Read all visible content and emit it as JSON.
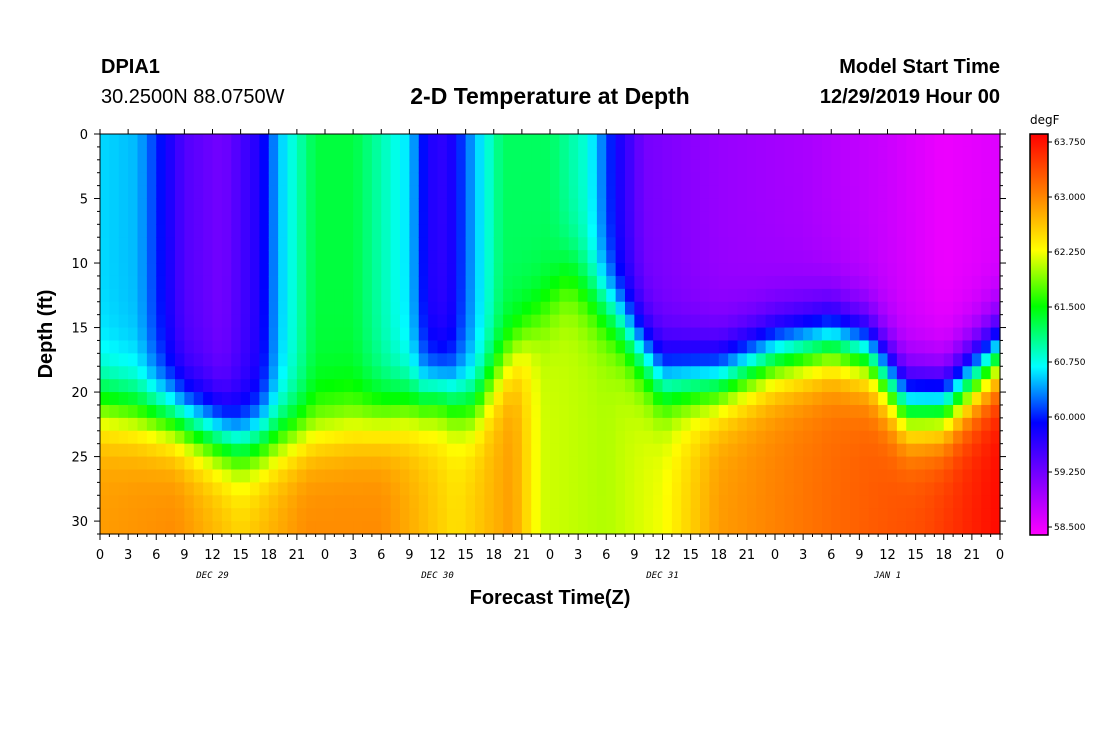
{
  "header": {
    "station_id": "DPIA1",
    "station_coords": "30.2500N 88.0750W",
    "title": "2-D Temperature at Depth",
    "start_label": "Model Start Time",
    "start_time": "12/29/2019 Hour 00"
  },
  "chart_data": {
    "type": "heatmap",
    "title": "2-D Temperature at Depth",
    "xlabel": "Forecast Time(Z)",
    "ylabel": "Depth (ft)",
    "x_ticks": [
      "0",
      "3",
      "6",
      "9",
      "12",
      "15",
      "18",
      "21",
      "0",
      "3",
      "6",
      "9",
      "12",
      "15",
      "18",
      "21",
      "0",
      "3",
      "6",
      "9",
      "12",
      "15",
      "18",
      "21",
      "0",
      "3",
      "6",
      "9",
      "12",
      "15",
      "18",
      "21",
      "0"
    ],
    "x_range_hours": [
      0,
      96
    ],
    "date_labels": [
      {
        "label": "DEC 29",
        "hour": 12
      },
      {
        "label": "DEC 30",
        "hour": 36
      },
      {
        "label": "DEC 31",
        "hour": 60
      },
      {
        "label": "JAN 1",
        "hour": 84
      }
    ],
    "y_ticks": [
      0,
      5,
      10,
      15,
      20,
      25,
      30
    ],
    "y_range": [
      0,
      31
    ],
    "y_inverted": true,
    "colorbar": {
      "unit": "degF",
      "min": 58.5,
      "max": 63.75,
      "labels": [
        "63.750",
        "63.000",
        "62.250",
        "61.500",
        "60.750",
        "60.000",
        "59.250",
        "58.500"
      ]
    },
    "surface_temp_by_hour": [
      {
        "hour": 0,
        "temp": 60.6
      },
      {
        "hour": 4,
        "temp": 60.5
      },
      {
        "hour": 7,
        "temp": 59.9
      },
      {
        "hour": 9,
        "temp": 59.5
      },
      {
        "hour": 13,
        "temp": 59.3
      },
      {
        "hour": 17,
        "temp": 59.8
      },
      {
        "hour": 19,
        "temp": 60.5
      },
      {
        "hour": 23,
        "temp": 61.3
      },
      {
        "hour": 27,
        "temp": 61.3
      },
      {
        "hour": 33,
        "temp": 60.6
      },
      {
        "hour": 35,
        "temp": 59.8
      },
      {
        "hour": 37,
        "temp": 59.7
      },
      {
        "hour": 40,
        "temp": 60.5
      },
      {
        "hour": 43,
        "temp": 61.2
      },
      {
        "hour": 48,
        "temp": 61.2
      },
      {
        "hour": 52,
        "temp": 60.8
      },
      {
        "hour": 55,
        "temp": 59.9
      },
      {
        "hour": 58,
        "temp": 59.3
      },
      {
        "hour": 66,
        "temp": 59.1
      },
      {
        "hour": 75,
        "temp": 59.0
      },
      {
        "hour": 84,
        "temp": 58.8
      },
      {
        "hour": 90,
        "temp": 58.6
      },
      {
        "hour": 96,
        "temp": 58.7
      }
    ],
    "bottom_temp_by_hour": [
      {
        "hour": 0,
        "temp": 62.8
      },
      {
        "hour": 8,
        "temp": 62.9
      },
      {
        "hour": 15,
        "temp": 62.5
      },
      {
        "hour": 22,
        "temp": 62.9
      },
      {
        "hour": 30,
        "temp": 62.9
      },
      {
        "hour": 38,
        "temp": 62.4
      },
      {
        "hour": 44,
        "temp": 62.8
      },
      {
        "hour": 47,
        "temp": 62.1
      },
      {
        "hour": 54,
        "temp": 62.0
      },
      {
        "hour": 60,
        "temp": 62.2
      },
      {
        "hour": 66,
        "temp": 62.8
      },
      {
        "hour": 78,
        "temp": 63.1
      },
      {
        "hour": 88,
        "temp": 63.3
      },
      {
        "hour": 96,
        "temp": 63.7
      }
    ],
    "thermocline_depth_by_hour": [
      {
        "hour": 0,
        "depth": 21
      },
      {
        "hour": 8,
        "depth": 22
      },
      {
        "hour": 15,
        "depth": 24
      },
      {
        "hour": 22,
        "depth": 23
      },
      {
        "hour": 30,
        "depth": 22
      },
      {
        "hour": 36,
        "depth": 20
      },
      {
        "hour": 40,
        "depth": 21
      },
      {
        "hour": 44,
        "depth": 17
      },
      {
        "hour": 50,
        "depth": 11
      },
      {
        "hour": 55,
        "depth": 14
      },
      {
        "hour": 60,
        "depth": 19
      },
      {
        "hour": 66,
        "depth": 19
      },
      {
        "hour": 72,
        "depth": 17
      },
      {
        "hour": 78,
        "depth": 16
      },
      {
        "hour": 82,
        "depth": 17
      },
      {
        "hour": 86,
        "depth": 21
      },
      {
        "hour": 90,
        "depth": 21
      },
      {
        "hour": 96,
        "depth": 17
      }
    ]
  }
}
